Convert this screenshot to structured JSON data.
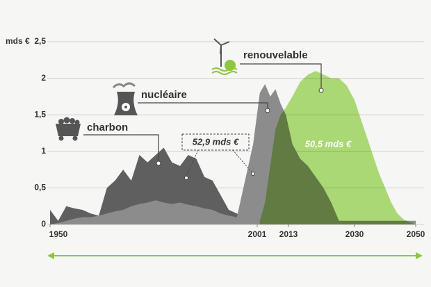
{
  "chart_data": {
    "type": "area",
    "y_label": "mds €",
    "x": [
      1950,
      1952,
      1954,
      1956,
      1958,
      1960,
      1962,
      1964,
      1966,
      1968,
      1970,
      1972,
      1974,
      1976,
      1978,
      1980,
      1982,
      1984,
      1986,
      1988,
      1990,
      1992,
      1994,
      1996,
      1998,
      2000,
      2002,
      2004,
      2006,
      2008,
      2010,
      2012,
      2014,
      2016,
      2018,
      2020,
      2022,
      2024,
      2026,
      2028,
      2030,
      2032,
      2034,
      2036,
      2038,
      2040,
      2042,
      2044,
      2046,
      2048,
      2050
    ],
    "series": [
      {
        "name": "charbon",
        "color": "#5f5f5f",
        "values": [
          0.2,
          0.05,
          0.25,
          0.22,
          0.2,
          0.15,
          0.12,
          0.5,
          0.6,
          0.75,
          0.6,
          0.95,
          0.85,
          0.95,
          1.05,
          0.85,
          0.8,
          0.95,
          0.9,
          0.65,
          0.6,
          0.4,
          0.2,
          0.15,
          0.1,
          0.08,
          0.05,
          null,
          null,
          null,
          null,
          null,
          null,
          null,
          null,
          null,
          null,
          null,
          null,
          null,
          null,
          null,
          null,
          null,
          null,
          null,
          null,
          null,
          null,
          null,
          null
        ]
      },
      {
        "name": "nucléaire",
        "color": "#8c8c8c",
        "values": [
          0,
          0.02,
          0.05,
          0.08,
          0.1,
          0.1,
          0.12,
          0.15,
          0.18,
          0.2,
          0.25,
          0.28,
          0.3,
          0.33,
          0.3,
          0.28,
          0.3,
          0.27,
          0.25,
          0.22,
          0.2,
          0.15,
          0.12,
          0.1,
          0.6,
          1.1,
          1.8,
          1.92,
          1.75,
          1.85,
          1.65,
          1.5,
          1.1,
          0.9,
          0.8,
          0.65,
          0.5,
          0.3,
          0.05,
          0.05,
          0.05,
          0.05,
          0.05,
          0.05,
          0.05,
          0.05,
          0.05,
          0.05,
          0.05,
          0.05,
          0.05
        ]
      },
      {
        "name": "renouvelable",
        "color": "#b0e07a",
        "values": [
          null,
          null,
          null,
          null,
          null,
          null,
          null,
          null,
          null,
          null,
          null,
          null,
          null,
          null,
          null,
          null,
          null,
          null,
          null,
          null,
          null,
          null,
          null,
          null,
          null,
          null,
          0.05,
          0.3,
          0.8,
          1.3,
          1.5,
          1.6,
          1.75,
          1.95,
          2.05,
          2.1,
          2.05,
          2.0,
          2.0,
          1.9,
          1.7,
          1.45,
          1.2,
          0.95,
          0.7,
          0.5,
          0.3,
          0.15,
          0.07,
          0.03,
          0
        ]
      }
    ],
    "annotations": [
      "52,9 mds €",
      "50,5 mds €"
    ],
    "xlim": [
      1950,
      2050
    ],
    "xticks": [
      1950,
      2001,
      2013,
      2030,
      2050
    ],
    "ylim": [
      0,
      2.5
    ],
    "yticks": [
      0,
      {
        "value": 0.5,
        "label": "0,5"
      },
      1,
      {
        "value": 1.5,
        "label": "1,5"
      },
      2,
      {
        "value": 2.5,
        "label": "2,5"
      }
    ],
    "grid": true
  }
}
